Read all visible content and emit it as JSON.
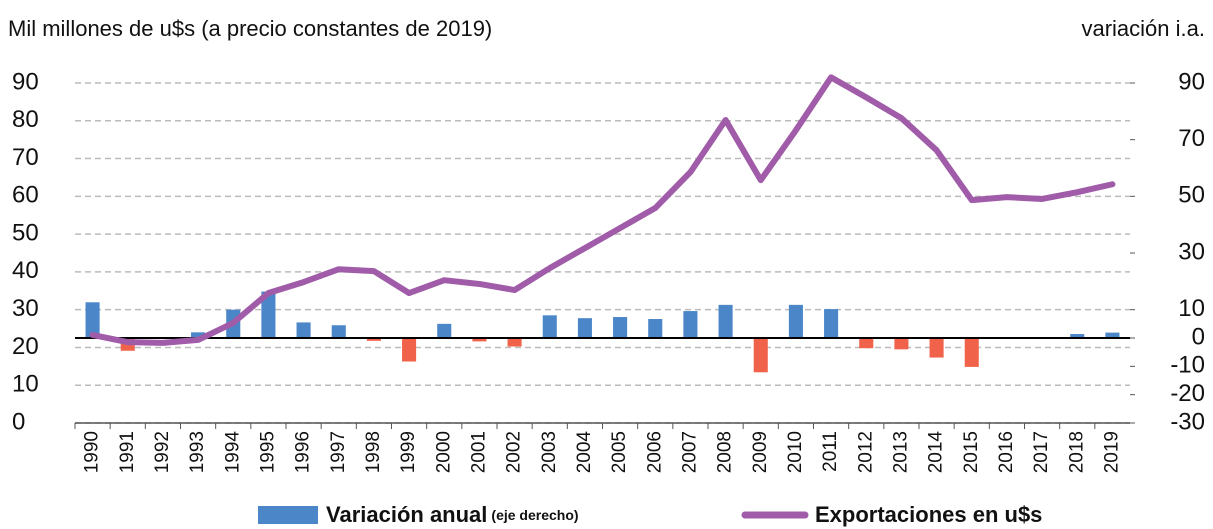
{
  "chart_data": {
    "type": "bar_line",
    "title": "Mil millones de u$s (a precio constantes de 2019)",
    "y2_title": "variación i.a.",
    "categories": [
      "1990",
      "1991",
      "1992",
      "1993",
      "1994",
      "1995",
      "1996",
      "1997",
      "1998",
      "1999",
      "2000",
      "2001",
      "2002",
      "2003",
      "2004",
      "2005",
      "2006",
      "2007",
      "2008",
      "2009",
      "2010",
      "2011",
      "2012",
      "2013",
      "2014",
      "2015",
      "2016",
      "2017",
      "2018",
      "2019"
    ],
    "series": [
      {
        "name": "Variación anual",
        "note": "(eje derecho)",
        "type": "bar",
        "axis": "y2",
        "color": "#4a86c8",
        "negative_color": "#f0634a",
        "values": [
          12.6,
          -4.5,
          0,
          2,
          10,
          16.4,
          5.5,
          4.5,
          -1,
          -8.3,
          5,
          -1.2,
          -3,
          8,
          7,
          7.4,
          6.7,
          9.5,
          11.7,
          -12.1,
          11.7,
          10.2,
          -3.6,
          -4,
          -6.9,
          -10.2,
          0,
          -0.2,
          1.4,
          1.9
        ]
      },
      {
        "name": "Exportaciones en u$s",
        "type": "line",
        "axis": "y",
        "color": "#a05ca8",
        "values": [
          23.3,
          21.4,
          21.2,
          22,
          26.5,
          34.4,
          37.3,
          40.7,
          40.2,
          34.4,
          37.8,
          36.8,
          35.2,
          41,
          46.3,
          51.6,
          56.9,
          66.4,
          80.2,
          64.3,
          77.5,
          91.5,
          86.2,
          80.7,
          72.2,
          59,
          59.8,
          59.3,
          61.1,
          63.2
        ]
      }
    ],
    "ylim": [
      0,
      90
    ],
    "yticks": [
      0,
      10,
      20,
      30,
      40,
      50,
      60,
      70,
      80,
      90
    ],
    "y2lim": [
      -30,
      90
    ],
    "y2ticks": [
      90,
      70,
      50,
      30,
      10,
      0,
      -10,
      -20,
      -30
    ],
    "grid": true
  }
}
